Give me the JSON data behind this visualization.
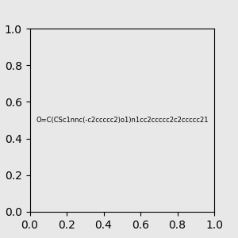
{
  "smiles": "O=C(CSc1nnc(-c2ccccc2)o1)n1cc2ccccc2c2ccccc21",
  "image_size": 300,
  "background_color": "#e8e8e8",
  "title": ""
}
